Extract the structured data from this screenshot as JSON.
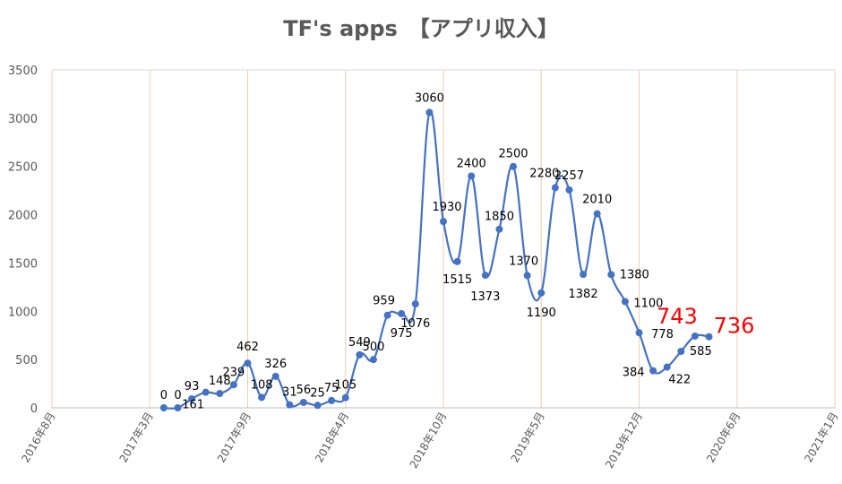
{
  "chart_data": {
    "type": "line",
    "title": "TF's apps　【アプリ収入】",
    "xlabel": "",
    "ylabel": "",
    "ylim": [
      0,
      3500
    ],
    "y_ticks": [
      "0",
      "500",
      "1000",
      "1500",
      "2000",
      "2500",
      "3000",
      "3500"
    ],
    "x_ticks": [
      "2016年8月",
      "2017年3月",
      "2017年9月",
      "2018年4月",
      "2018年10月",
      "2019年5月",
      "2019年12月",
      "2020年6月",
      "2021年1月"
    ],
    "grid": "vertical",
    "series": [
      {
        "color": "#4472C4",
        "smooth": true,
        "points": [
          {
            "x": "2017-04",
            "y": 0
          },
          {
            "x": "2017-05",
            "y": 0
          },
          {
            "x": "2017-06",
            "y": 93
          },
          {
            "x": "2017-07",
            "y": 161
          },
          {
            "x": "2017-08",
            "y": 148
          },
          {
            "x": "2017-09",
            "y": 239
          },
          {
            "x": "2017-10",
            "y": 462
          },
          {
            "x": "2017-11",
            "y": 108
          },
          {
            "x": "2017-12",
            "y": 326
          },
          {
            "x": "2018-01",
            "y": 31
          },
          {
            "x": "2018-02",
            "y": 56
          },
          {
            "x": "2018-03",
            "y": 25
          },
          {
            "x": "2018-04",
            "y": 75
          },
          {
            "x": "2018-05",
            "y": 105
          },
          {
            "x": "2018-06",
            "y": 549
          },
          {
            "x": "2018-07",
            "y": 500
          },
          {
            "x": "2018-08",
            "y": 959
          },
          {
            "x": "2018-09",
            "y": 975
          },
          {
            "x": "2018-10",
            "y": 1076
          },
          {
            "x": "2018-11",
            "y": 3060
          },
          {
            "x": "2018-12",
            "y": 1930
          },
          {
            "x": "2019-01",
            "y": 1515
          },
          {
            "x": "2019-02",
            "y": 2400
          },
          {
            "x": "2019-03",
            "y": 1373
          },
          {
            "x": "2019-04",
            "y": 1850
          },
          {
            "x": "2019-05",
            "y": 2500
          },
          {
            "x": "2019-06",
            "y": 1370
          },
          {
            "x": "2019-07",
            "y": 1190
          },
          {
            "x": "2019-08",
            "y": 2280
          },
          {
            "x": "2019-09",
            "y": 2257
          },
          {
            "x": "2019-10",
            "y": 1382
          },
          {
            "x": "2019-11",
            "y": 2010
          },
          {
            "x": "2019-12",
            "y": 1380
          },
          {
            "x": "2020-01",
            "y": 1100
          },
          {
            "x": "2020-02",
            "y": 778
          },
          {
            "x": "2020-03",
            "y": 384
          },
          {
            "x": "2020-04",
            "y": 422
          },
          {
            "x": "2020-05",
            "y": 585
          },
          {
            "x": "2020-06",
            "y": 743
          },
          {
            "x": "2020-07",
            "y": 736
          }
        ]
      }
    ],
    "data_labels": [
      {
        "text": "0",
        "color": "#000000",
        "big": false
      },
      {
        "text": "0",
        "color": "#000000",
        "big": false
      },
      {
        "text": "93",
        "color": "#000000",
        "big": false
      },
      {
        "text": "161",
        "color": "#000000",
        "big": false
      },
      {
        "text": "148",
        "color": "#000000",
        "big": false
      },
      {
        "text": "239",
        "color": "#000000",
        "big": false
      },
      {
        "text": "462",
        "color": "#000000",
        "big": false
      },
      {
        "text": "108",
        "color": "#000000",
        "big": false
      },
      {
        "text": "326",
        "color": "#000000",
        "big": false
      },
      {
        "text": "31",
        "color": "#000000",
        "big": false
      },
      {
        "text": "56",
        "color": "#000000",
        "big": false
      },
      {
        "text": "25",
        "color": "#000000",
        "big": false
      },
      {
        "text": "75",
        "color": "#000000",
        "big": false
      },
      {
        "text": "105",
        "color": "#000000",
        "big": false
      },
      {
        "text": "549",
        "color": "#000000",
        "big": false
      },
      {
        "text": "500",
        "color": "#000000",
        "big": false
      },
      {
        "text": "959",
        "color": "#000000",
        "big": false
      },
      {
        "text": "975",
        "color": "#000000",
        "big": false
      },
      {
        "text": "1076",
        "color": "#000000",
        "big": false
      },
      {
        "text": "3060",
        "color": "#000000",
        "big": false
      },
      {
        "text": "1930",
        "color": "#000000",
        "big": false
      },
      {
        "text": "1515",
        "color": "#000000",
        "big": false
      },
      {
        "text": "2400",
        "color": "#000000",
        "big": false
      },
      {
        "text": "1373",
        "color": "#000000",
        "big": false
      },
      {
        "text": "1850",
        "color": "#000000",
        "big": false
      },
      {
        "text": "2500",
        "color": "#000000",
        "big": false
      },
      {
        "text": "1370",
        "color": "#000000",
        "big": false
      },
      {
        "text": "1190",
        "color": "#000000",
        "big": false
      },
      {
        "text": "2280",
        "color": "#000000",
        "big": false
      },
      {
        "text": "2257",
        "color": "#000000",
        "big": false
      },
      {
        "text": "1382",
        "color": "#000000",
        "big": false
      },
      {
        "text": "2010",
        "color": "#000000",
        "big": false
      },
      {
        "text": "1380",
        "color": "#000000",
        "big": false
      },
      {
        "text": "1100",
        "color": "#000000",
        "big": false
      },
      {
        "text": "778",
        "color": "#000000",
        "big": false
      },
      {
        "text": "384",
        "color": "#000000",
        "big": false
      },
      {
        "text": "422",
        "color": "#000000",
        "big": false
      },
      {
        "text": "585",
        "color": "#000000",
        "big": false
      },
      {
        "text": "743",
        "color": "#FF0000",
        "big": true
      },
      {
        "text": "736",
        "color": "#FF0000",
        "big": true
      }
    ],
    "colors": {
      "line": "#4472C4",
      "highlight": "#FF0000",
      "grid": "#F4CCAA",
      "title": "#595959"
    }
  }
}
